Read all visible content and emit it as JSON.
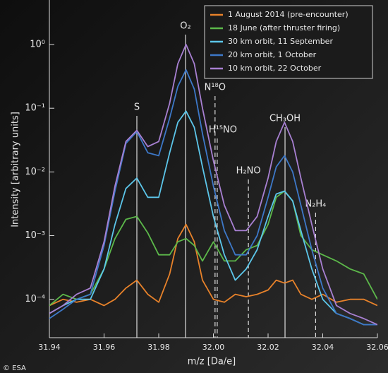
{
  "chart_data": {
    "type": "line",
    "xlabel": "m/z [Da/e]",
    "ylabel": "Intensity [arbitrary units]",
    "credit": "© ESA",
    "log_y": true,
    "legend": "upper right",
    "xlim": [
      31.94,
      32.06
    ],
    "xticks": [
      31.94,
      31.96,
      31.98,
      {
        "value": 32,
        "label": "32.00"
      },
      32.02,
      32.04,
      32.06
    ],
    "ylim": [
      2.5e-05,
      5
    ],
    "yticks": [
      {
        "value": 0.0001,
        "label": "10⁻⁴"
      },
      {
        "value": 0.001,
        "label": "10⁻³"
      },
      {
        "value": 0.01,
        "label": "10⁻²"
      },
      {
        "value": 0.1,
        "label": "10⁻¹"
      },
      {
        "value": 1,
        "label": "10⁰"
      }
    ],
    "x": [
      31.94,
      31.945,
      31.95,
      31.955,
      31.96,
      31.964,
      31.968,
      31.972,
      31.976,
      31.98,
      31.984,
      31.987,
      31.99,
      31.993,
      31.996,
      32.0,
      32.004,
      32.008,
      32.012,
      32.016,
      32.02,
      32.023,
      32.026,
      32.029,
      32.032,
      32.036,
      32.04,
      32.045,
      32.05,
      32.055,
      32.06
    ],
    "series": [
      {
        "name": "1 August 2014 (pre-encounter)",
        "color": "#e8822a",
        "values": [
          8e-05,
          0.0001,
          9e-05,
          0.0001,
          8e-05,
          0.0001,
          0.00015,
          0.0002,
          0.00012,
          9e-05,
          0.00025,
          0.0009,
          0.0015,
          0.0008,
          0.0002,
          0.0001,
          9e-05,
          0.00012,
          0.00011,
          0.00012,
          0.00014,
          0.0002,
          0.00018,
          0.0002,
          0.00012,
          0.0001,
          0.00012,
          9e-05,
          0.0001,
          0.0001,
          8e-05
        ]
      },
      {
        "name": "18 June (after thruster firing)",
        "color": "#5cb84a",
        "values": [
          8e-05,
          0.00012,
          0.0001,
          0.00012,
          0.0003,
          0.0009,
          0.0018,
          0.002,
          0.0011,
          0.0005,
          0.0005,
          0.0008,
          0.0009,
          0.0007,
          0.0004,
          0.0008,
          0.0004,
          0.0004,
          0.0006,
          0.0007,
          0.0015,
          0.004,
          0.005,
          0.0035,
          0.001,
          0.0006,
          0.0005,
          0.0004,
          0.0003,
          0.00025,
          0.0001
        ]
      },
      {
        "name": "30 km orbit, 11 September",
        "color": "#5cc6ea",
        "values": [
          6e-05,
          8e-05,
          0.0001,
          0.0001,
          0.0003,
          0.0015,
          0.0055,
          0.008,
          0.004,
          0.004,
          0.02,
          0.06,
          0.09,
          0.05,
          0.012,
          0.002,
          0.0005,
          0.0002,
          0.0003,
          0.0006,
          0.002,
          0.0045,
          0.005,
          0.0035,
          0.0012,
          0.0003,
          0.0001,
          6e-05,
          5e-05,
          4e-05,
          4e-05
        ]
      },
      {
        "name": "20 km orbit, 1 October",
        "color": "#3d78c8",
        "values": [
          5e-05,
          7e-05,
          0.0001,
          0.00012,
          0.0007,
          0.005,
          0.028,
          0.043,
          0.02,
          0.018,
          0.07,
          0.22,
          0.4,
          0.2,
          0.04,
          0.006,
          0.0012,
          0.0005,
          0.0005,
          0.001,
          0.004,
          0.012,
          0.018,
          0.01,
          0.003,
          0.0006,
          0.00015,
          6e-05,
          5e-05,
          4e-05,
          4e-05
        ]
      },
      {
        "name": "10 km orbit, 22 October",
        "color": "#a880d2",
        "values": [
          6e-05,
          8e-05,
          0.00012,
          0.00015,
          0.0008,
          0.006,
          0.03,
          0.045,
          0.025,
          0.03,
          0.12,
          0.5,
          1.0,
          0.5,
          0.1,
          0.015,
          0.003,
          0.0012,
          0.0012,
          0.002,
          0.008,
          0.03,
          0.06,
          0.03,
          0.008,
          0.0015,
          0.0003,
          8e-05,
          6e-05,
          5e-05,
          4e-05
        ]
      }
    ],
    "annotations": [
      {
        "label": "S",
        "x": 31.972,
        "style": "solid"
      },
      {
        "label": "O₂",
        "x": 31.9898,
        "style": "solid"
      },
      {
        "label": "N¹⁸O",
        "x": 32.0006,
        "style": "dashed"
      },
      {
        "label": "H¹⁵NO",
        "x": 32.0014,
        "style": "dashed"
      },
      {
        "label": "H₂NO",
        "x": 32.0128,
        "style": "dashed"
      },
      {
        "label": "CH₃OH",
        "x": 32.0262,
        "style": "solid"
      },
      {
        "label": "N₂H₄",
        "x": 32.0374,
        "style": "dashed"
      }
    ]
  }
}
